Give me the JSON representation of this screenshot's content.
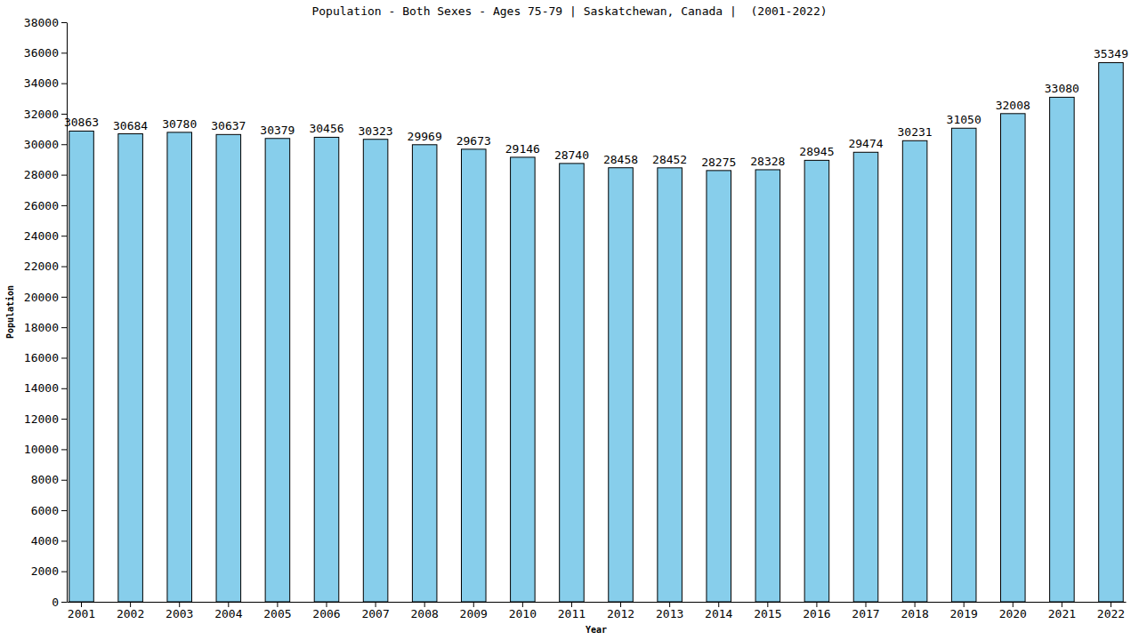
{
  "chart_data": {
    "type": "bar",
    "title": "Population - Both Sexes - Ages 75-79 | Saskatchewan, Canada |  (2001-2022)",
    "x_label": "Year",
    "y_label": "Population",
    "categories": [
      "2001",
      "2002",
      "2003",
      "2004",
      "2005",
      "2006",
      "2007",
      "2008",
      "2009",
      "2010",
      "2011",
      "2012",
      "2013",
      "2014",
      "2015",
      "2016",
      "2017",
      "2018",
      "2019",
      "2020",
      "2021",
      "2022"
    ],
    "values": [
      30863,
      30684,
      30780,
      30637,
      30379,
      30456,
      30323,
      29969,
      29673,
      29146,
      28740,
      28458,
      28452,
      28275,
      28328,
      28945,
      29474,
      30231,
      31050,
      32008,
      33080,
      35349
    ],
    "color": "#87ceeb",
    "ylim": [
      0,
      38000
    ],
    "yticks": [
      0,
      2000,
      4000,
      6000,
      8000,
      10000,
      12000,
      14000,
      16000,
      18000,
      20000,
      22000,
      24000,
      26000,
      28000,
      30000,
      32000,
      34000,
      36000,
      38000
    ],
    "grid": false,
    "data_labels": true
  }
}
